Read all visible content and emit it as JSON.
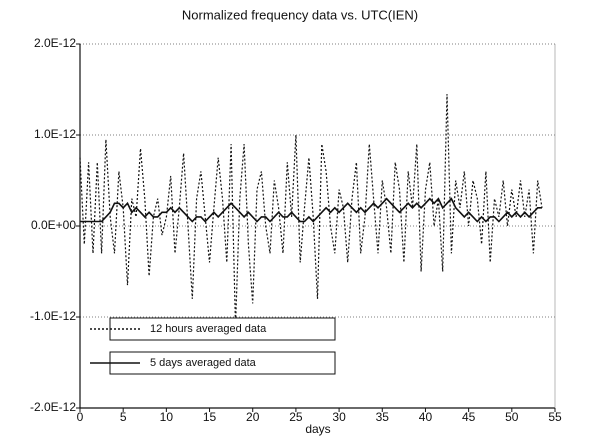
{
  "chart_data": {
    "type": "line",
    "title": "Normalized frequency data vs. UTC(IEN)",
    "xlabel": "days",
    "x": [
      0,
      0.5,
      1,
      1.5,
      2,
      2.5,
      3,
      3.5,
      4,
      4.5,
      5,
      5.5,
      6,
      6.5,
      7,
      7.5,
      8,
      8.5,
      9,
      9.5,
      10,
      10.5,
      11,
      11.5,
      12,
      12.5,
      13,
      13.5,
      14,
      14.5,
      15,
      15.5,
      16,
      16.5,
      17,
      17.5,
      18,
      18.5,
      19,
      19.5,
      20,
      20.5,
      21,
      21.5,
      22,
      22.5,
      23,
      23.5,
      24,
      24.5,
      25,
      25.5,
      26,
      26.5,
      27,
      27.5,
      28,
      28.5,
      29,
      29.5,
      30,
      30.5,
      31,
      31.5,
      32,
      32.5,
      33,
      33.5,
      34,
      34.5,
      35,
      35.5,
      36,
      36.5,
      37,
      37.5,
      38,
      38.5,
      39,
      39.5,
      40,
      40.5,
      41,
      41.5,
      42,
      42.5,
      43,
      43.5,
      44,
      44.5,
      45,
      45.5,
      46,
      46.5,
      47,
      47.5,
      48,
      48.5,
      49,
      49.5,
      50,
      50.5,
      51,
      51.5,
      52,
      52.5,
      53,
      53.5
    ],
    "series": [
      {
        "name": "12 hours averaged data",
        "color": "#111111",
        "style": "dotted",
        "values": [
          7.5e-13,
          -2e-13,
          7e-13,
          -3e-13,
          7e-13,
          -3e-13,
          9.5e-13,
          1e-13,
          -3e-13,
          6e-13,
          2e-13,
          -6.5e-13,
          3e-13,
          1e-13,
          8.5e-13,
          3e-13,
          -5.5e-13,
          1e-13,
          3e-13,
          -1e-13,
          1e-13,
          5.5e-13,
          -3e-13,
          2e-13,
          8e-13,
          0.0,
          -8e-13,
          3e-13,
          6e-13,
          1e-13,
          -4e-13,
          2e-13,
          7.5e-13,
          3e-13,
          -4e-13,
          9e-13,
          -1.1e-12,
          3e-13,
          9e-13,
          -2e-13,
          -8.5e-13,
          4e-13,
          6e-13,
          0.0,
          -3e-13,
          5e-13,
          2e-13,
          -3e-13,
          7e-13,
          1e-13,
          1e-12,
          -4e-13,
          2e-13,
          7.5e-13,
          1e-13,
          -8e-13,
          9e-13,
          6e-13,
          0.0,
          -3e-13,
          4e-13,
          2e-13,
          -4e-13,
          3e-13,
          7e-13,
          -3e-13,
          1e-13,
          9e-13,
          3e-13,
          -3e-13,
          5e-13,
          2e-13,
          -3e-13,
          7e-13,
          4e-13,
          -4e-13,
          6e-13,
          2e-13,
          9e-13,
          -5e-13,
          4e-13,
          7e-13,
          0.0,
          3e-13,
          -5e-13,
          1.45e-12,
          -3e-13,
          5e-13,
          2e-13,
          6e-13,
          0.0,
          5e-13,
          3e-13,
          -2e-13,
          6e-13,
          -4e-13,
          3e-13,
          1e-13,
          5e-13,
          0.0,
          4e-13,
          1e-13,
          5e-13,
          1e-13,
          4e-13,
          -3e-13,
          5e-13,
          2e-13
        ]
      },
      {
        "name": "5 days averaged data",
        "color": "#111111",
        "style": "solid",
        "values": [
          5e-14,
          5e-14,
          5e-14,
          5e-14,
          5e-14,
          5e-14,
          1e-13,
          1.5e-13,
          2.5e-13,
          2.5e-13,
          2e-13,
          2.5e-13,
          1.5e-13,
          2e-13,
          1.5e-13,
          1e-13,
          1.5e-13,
          1e-13,
          1e-13,
          1.5e-13,
          1.5e-13,
          2e-13,
          1.5e-13,
          2e-13,
          1.5e-13,
          1e-13,
          5e-14,
          1e-13,
          1e-13,
          5e-14,
          1e-13,
          1.5e-13,
          1e-13,
          1.5e-13,
          2e-13,
          2.5e-13,
          2e-13,
          1.5e-13,
          1e-13,
          1.5e-13,
          1e-13,
          5e-14,
          1e-13,
          1e-13,
          5e-14,
          1e-13,
          1.5e-13,
          1e-13,
          1e-13,
          1.5e-13,
          1e-13,
          5e-14,
          5e-14,
          1e-13,
          5e-14,
          1e-13,
          1.5e-13,
          2e-13,
          1.5e-13,
          2e-13,
          1.5e-13,
          2e-13,
          2.5e-13,
          2e-13,
          1.5e-13,
          2e-13,
          1.5e-13,
          2e-13,
          2.5e-13,
          2e-13,
          2.5e-13,
          3e-13,
          2.5e-13,
          2e-13,
          1.5e-13,
          2e-13,
          2.5e-13,
          2e-13,
          2.5e-13,
          2e-13,
          2.5e-13,
          3e-13,
          2.5e-13,
          3e-13,
          2e-13,
          2.5e-13,
          3e-13,
          2e-13,
          1.5e-13,
          1e-13,
          1.5e-13,
          1e-13,
          5e-14,
          1e-13,
          5e-14,
          1e-13,
          1e-13,
          5e-14,
          1e-13,
          1.5e-13,
          1e-13,
          1.5e-13,
          1e-13,
          1.5e-13,
          1e-13,
          1.5e-13,
          2e-13,
          2e-13
        ]
      }
    ],
    "xlim": [
      0,
      55
    ],
    "xticks": [
      0,
      5,
      10,
      15,
      20,
      25,
      30,
      35,
      40,
      45,
      50,
      55
    ],
    "ylim": [
      -2e-12,
      2e-12
    ],
    "yticks": [
      {
        "value": -2e-12,
        "label": "-2.0E-12"
      },
      {
        "value": -1e-12,
        "label": "-1.0E-12"
      },
      {
        "value": 0,
        "label": "0.0E+00"
      },
      {
        "value": 1e-12,
        "label": "1.0E-12"
      },
      {
        "value": 2e-12,
        "label": "2.0E-12"
      }
    ],
    "grid": true
  }
}
